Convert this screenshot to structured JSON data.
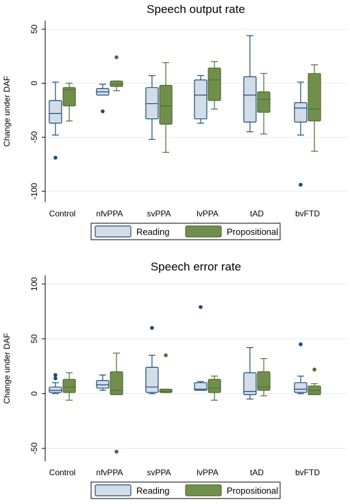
{
  "colors": {
    "reading_fill": "#d3dde8",
    "reading_stroke": "#1a4a78",
    "propositional_fill": "#708f4c",
    "propositional_stroke": "#4f6c30",
    "outlier_reading": "#1a4a78",
    "outlier_propositional": "#4f6c30",
    "grid": "#e4e8ec",
    "axis": "#000000"
  },
  "chart_data": [
    {
      "type": "box",
      "title": "Speech output rate",
      "ylabel": "Change under DAF",
      "xlabel": "",
      "ylim": [
        -110,
        58
      ],
      "yticks": [
        50,
        0,
        -50,
        -100
      ],
      "ytick_labels": [
        "50",
        "0",
        "-50",
        "-100"
      ],
      "grid": true,
      "legend_position": "bottom",
      "categories": [
        "Control",
        "nfvPPA",
        "svPPA",
        "lvPPA",
        "tAD",
        "bvFTD"
      ],
      "series": [
        {
          "name": "Reading",
          "boxes": [
            {
              "min": -48,
              "q1": -37,
              "median": -28,
              "q3": -16,
              "max": 1,
              "outliers": [
                -69
              ]
            },
            {
              "min": -11,
              "q1": -11,
              "median": -8,
              "q3": -5,
              "max": -1,
              "outliers": [
                -26
              ]
            },
            {
              "min": -52,
              "q1": -33,
              "median": -19,
              "q3": -4,
              "max": 7,
              "outliers": []
            },
            {
              "min": -37,
              "q1": -33,
              "median": -11,
              "q3": 3,
              "max": 7,
              "outliers": []
            },
            {
              "min": -45,
              "q1": -36,
              "median": -11,
              "q3": 6,
              "max": 44,
              "outliers": []
            },
            {
              "min": -48,
              "q1": -36,
              "median": -23,
              "q3": -18,
              "max": 1,
              "outliers": [
                -94
              ]
            }
          ]
        },
        {
          "name": "Propositional",
          "boxes": [
            {
              "min": -35,
              "q1": -21,
              "median": -6,
              "q3": -4,
              "max": 0,
              "outliers": []
            },
            {
              "min": -7,
              "q1": -3,
              "median": -1,
              "q3": 2,
              "max": 2,
              "outliers": [
                24
              ]
            },
            {
              "min": -64,
              "q1": -38,
              "median": -21,
              "q3": -2,
              "max": 19,
              "outliers": []
            },
            {
              "min": -24,
              "q1": -16,
              "median": 3,
              "q3": 14,
              "max": 20,
              "outliers": []
            },
            {
              "min": -47,
              "q1": -27,
              "median": -15,
              "q3": -8,
              "max": 9,
              "outliers": []
            },
            {
              "min": -63,
              "q1": -35,
              "median": -24,
              "q3": 9,
              "max": 17,
              "outliers": []
            }
          ]
        }
      ]
    },
    {
      "type": "box",
      "title": "Speech error rate",
      "ylabel": "Change under DAF",
      "xlabel": "",
      "ylim": [
        -62,
        108
      ],
      "yticks": [
        100,
        50,
        0,
        -50
      ],
      "ytick_labels": [
        "100",
        "50",
        "0",
        "-50"
      ],
      "grid": true,
      "legend_position": "bottom",
      "categories": [
        "Control",
        "nfvPPA",
        "svPPA",
        "lvPPA",
        "tAD",
        "bvFTD"
      ],
      "series": [
        {
          "name": "Reading",
          "boxes": [
            {
              "min": 0,
              "q1": 1,
              "median": 3,
              "q3": 6,
              "max": 10,
              "outliers": [
                14,
                17
              ]
            },
            {
              "min": 3,
              "q1": 5,
              "median": 8,
              "q3": 12,
              "max": 17,
              "outliers": []
            },
            {
              "min": 0,
              "q1": 1,
              "median": 6,
              "q3": 24,
              "max": 35,
              "outliers": [
                60
              ]
            },
            {
              "min": 3,
              "q1": 3,
              "median": 4,
              "q3": 10,
              "max": 11,
              "outliers": [
                79
              ]
            },
            {
              "min": -5,
              "q1": -1,
              "median": 2,
              "q3": 19,
              "max": 42,
              "outliers": []
            },
            {
              "min": 0,
              "q1": 1,
              "median": 4,
              "q3": 10,
              "max": 16,
              "outliers": [
                45
              ]
            }
          ]
        },
        {
          "name": "Propositional",
          "boxes": [
            {
              "min": -6,
              "q1": 1,
              "median": 6,
              "q3": 13,
              "max": 19,
              "outliers": []
            },
            {
              "min": -1,
              "q1": -1,
              "median": 3,
              "q3": 20,
              "max": 37,
              "outliers": [
                -53
              ]
            },
            {
              "min": 1,
              "q1": 1,
              "median": 2,
              "q3": 4,
              "max": 4,
              "outliers": [
                35
              ]
            },
            {
              "min": -6,
              "q1": 1,
              "median": 5,
              "q3": 13,
              "max": 16,
              "outliers": []
            },
            {
              "min": -2,
              "q1": 3,
              "median": 6,
              "q3": 20,
              "max": 32,
              "outliers": []
            },
            {
              "min": -1,
              "q1": -1,
              "median": 3,
              "q3": 7,
              "max": 9,
              "outliers": [
                22
              ]
            }
          ]
        }
      ]
    }
  ]
}
